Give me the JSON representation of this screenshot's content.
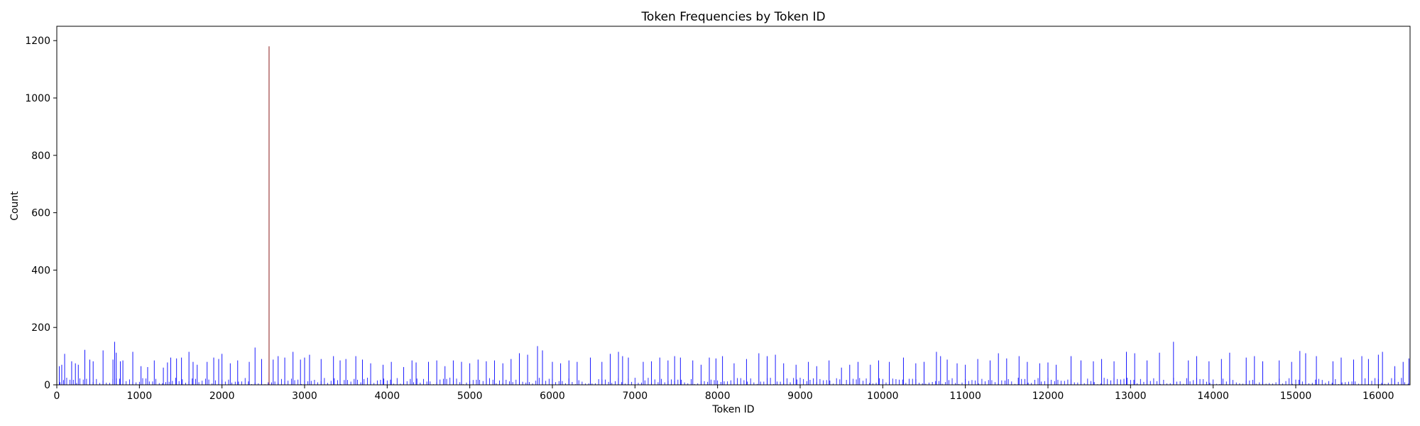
{
  "chart_data": {
    "type": "bar",
    "title": "Token Frequencies by Token ID",
    "xlabel": "Token ID",
    "ylabel": "Count",
    "xlim": [
      0,
      16384
    ],
    "ylim": [
      0,
      1250
    ],
    "xticks": [
      0,
      1000,
      2000,
      3000,
      4000,
      5000,
      6000,
      7000,
      8000,
      9000,
      10000,
      11000,
      12000,
      13000,
      14000,
      15000,
      16000
    ],
    "yticks": [
      0,
      200,
      400,
      600,
      800,
      1000,
      1200
    ],
    "grid": false,
    "bar_color": "#0000ff",
    "highlight_color": "#8b1a1a",
    "baseline_pattern": {
      "description_note_omitted": true,
      "typical_range": [
        2,
        25
      ],
      "bin_step": 40
    },
    "bars": [
      {
        "x": 30,
        "y": 65
      },
      {
        "x": 60,
        "y": 70
      },
      {
        "x": 95,
        "y": 108
      },
      {
        "x": 180,
        "y": 82
      },
      {
        "x": 225,
        "y": 75
      },
      {
        "x": 260,
        "y": 70
      },
      {
        "x": 340,
        "y": 122
      },
      {
        "x": 400,
        "y": 88
      },
      {
        "x": 440,
        "y": 82
      },
      {
        "x": 560,
        "y": 120
      },
      {
        "x": 680,
        "y": 88
      },
      {
        "x": 700,
        "y": 150
      },
      {
        "x": 720,
        "y": 112
      },
      {
        "x": 770,
        "y": 82
      },
      {
        "x": 800,
        "y": 85
      },
      {
        "x": 920,
        "y": 115
      },
      {
        "x": 1020,
        "y": 65
      },
      {
        "x": 1100,
        "y": 62
      },
      {
        "x": 1180,
        "y": 85
      },
      {
        "x": 1290,
        "y": 60
      },
      {
        "x": 1340,
        "y": 78
      },
      {
        "x": 1380,
        "y": 95
      },
      {
        "x": 1450,
        "y": 92
      },
      {
        "x": 1510,
        "y": 95
      },
      {
        "x": 1600,
        "y": 115
      },
      {
        "x": 1650,
        "y": 80
      },
      {
        "x": 1700,
        "y": 70
      },
      {
        "x": 1820,
        "y": 80
      },
      {
        "x": 1900,
        "y": 95
      },
      {
        "x": 1960,
        "y": 90
      },
      {
        "x": 2000,
        "y": 108
      },
      {
        "x": 2100,
        "y": 75
      },
      {
        "x": 2190,
        "y": 85
      },
      {
        "x": 2330,
        "y": 80
      },
      {
        "x": 2400,
        "y": 130
      },
      {
        "x": 2480,
        "y": 90
      },
      {
        "x": 2570,
        "y": 1180
      },
      {
        "x": 2620,
        "y": 88
      },
      {
        "x": 2680,
        "y": 100
      },
      {
        "x": 2760,
        "y": 95
      },
      {
        "x": 2860,
        "y": 115
      },
      {
        "x": 2950,
        "y": 88
      },
      {
        "x": 3000,
        "y": 95
      },
      {
        "x": 3060,
        "y": 105
      },
      {
        "x": 3200,
        "y": 90
      },
      {
        "x": 3350,
        "y": 100
      },
      {
        "x": 3430,
        "y": 85
      },
      {
        "x": 3500,
        "y": 90
      },
      {
        "x": 3620,
        "y": 100
      },
      {
        "x": 3700,
        "y": 88
      },
      {
        "x": 3800,
        "y": 75
      },
      {
        "x": 3950,
        "y": 70
      },
      {
        "x": 4050,
        "y": 80
      },
      {
        "x": 4200,
        "y": 62
      },
      {
        "x": 4300,
        "y": 85
      },
      {
        "x": 4350,
        "y": 78
      },
      {
        "x": 4500,
        "y": 80
      },
      {
        "x": 4600,
        "y": 85
      },
      {
        "x": 4700,
        "y": 65
      },
      {
        "x": 4800,
        "y": 85
      },
      {
        "x": 4900,
        "y": 80
      },
      {
        "x": 5000,
        "y": 75
      },
      {
        "x": 5100,
        "y": 88
      },
      {
        "x": 5200,
        "y": 82
      },
      {
        "x": 5300,
        "y": 85
      },
      {
        "x": 5400,
        "y": 75
      },
      {
        "x": 5500,
        "y": 90
      },
      {
        "x": 5600,
        "y": 110
      },
      {
        "x": 5700,
        "y": 105
      },
      {
        "x": 5820,
        "y": 135
      },
      {
        "x": 5880,
        "y": 120
      },
      {
        "x": 6000,
        "y": 80
      },
      {
        "x": 6100,
        "y": 75
      },
      {
        "x": 6200,
        "y": 85
      },
      {
        "x": 6300,
        "y": 80
      },
      {
        "x": 6460,
        "y": 95
      },
      {
        "x": 6600,
        "y": 80
      },
      {
        "x": 6700,
        "y": 108
      },
      {
        "x": 6800,
        "y": 115
      },
      {
        "x": 6850,
        "y": 100
      },
      {
        "x": 6920,
        "y": 95
      },
      {
        "x": 7100,
        "y": 80
      },
      {
        "x": 7200,
        "y": 82
      },
      {
        "x": 7300,
        "y": 95
      },
      {
        "x": 7400,
        "y": 85
      },
      {
        "x": 7480,
        "y": 100
      },
      {
        "x": 7550,
        "y": 95
      },
      {
        "x": 7700,
        "y": 85
      },
      {
        "x": 7800,
        "y": 70
      },
      {
        "x": 7900,
        "y": 95
      },
      {
        "x": 7980,
        "y": 92
      },
      {
        "x": 8060,
        "y": 100
      },
      {
        "x": 8200,
        "y": 75
      },
      {
        "x": 8350,
        "y": 90
      },
      {
        "x": 8500,
        "y": 110
      },
      {
        "x": 8600,
        "y": 100
      },
      {
        "x": 8700,
        "y": 105
      },
      {
        "x": 8800,
        "y": 75
      },
      {
        "x": 8950,
        "y": 70
      },
      {
        "x": 9100,
        "y": 80
      },
      {
        "x": 9200,
        "y": 65
      },
      {
        "x": 9350,
        "y": 85
      },
      {
        "x": 9500,
        "y": 60
      },
      {
        "x": 9600,
        "y": 70
      },
      {
        "x": 9700,
        "y": 80
      },
      {
        "x": 9850,
        "y": 70
      },
      {
        "x": 9950,
        "y": 85
      },
      {
        "x": 10080,
        "y": 80
      },
      {
        "x": 10250,
        "y": 95
      },
      {
        "x": 10400,
        "y": 75
      },
      {
        "x": 10500,
        "y": 80
      },
      {
        "x": 10650,
        "y": 115
      },
      {
        "x": 10700,
        "y": 100
      },
      {
        "x": 10780,
        "y": 88
      },
      {
        "x": 10900,
        "y": 75
      },
      {
        "x": 11000,
        "y": 70
      },
      {
        "x": 11150,
        "y": 90
      },
      {
        "x": 11300,
        "y": 85
      },
      {
        "x": 11400,
        "y": 110
      },
      {
        "x": 11500,
        "y": 92
      },
      {
        "x": 11650,
        "y": 100
      },
      {
        "x": 11750,
        "y": 80
      },
      {
        "x": 11900,
        "y": 75
      },
      {
        "x": 12000,
        "y": 78
      },
      {
        "x": 12100,
        "y": 70
      },
      {
        "x": 12280,
        "y": 100
      },
      {
        "x": 12400,
        "y": 85
      },
      {
        "x": 12550,
        "y": 82
      },
      {
        "x": 12650,
        "y": 90
      },
      {
        "x": 12800,
        "y": 82
      },
      {
        "x": 12950,
        "y": 115
      },
      {
        "x": 13050,
        "y": 110
      },
      {
        "x": 13200,
        "y": 85
      },
      {
        "x": 13350,
        "y": 112
      },
      {
        "x": 13520,
        "y": 150
      },
      {
        "x": 13700,
        "y": 85
      },
      {
        "x": 13800,
        "y": 100
      },
      {
        "x": 13950,
        "y": 82
      },
      {
        "x": 14100,
        "y": 90
      },
      {
        "x": 14200,
        "y": 112
      },
      {
        "x": 14400,
        "y": 95
      },
      {
        "x": 14500,
        "y": 100
      },
      {
        "x": 14600,
        "y": 82
      },
      {
        "x": 14800,
        "y": 85
      },
      {
        "x": 14950,
        "y": 80
      },
      {
        "x": 15050,
        "y": 118
      },
      {
        "x": 15120,
        "y": 110
      },
      {
        "x": 15250,
        "y": 100
      },
      {
        "x": 15450,
        "y": 82
      },
      {
        "x": 15550,
        "y": 95
      },
      {
        "x": 15700,
        "y": 88
      },
      {
        "x": 15800,
        "y": 100
      },
      {
        "x": 15880,
        "y": 90
      },
      {
        "x": 16000,
        "y": 105
      },
      {
        "x": 16050,
        "y": 115
      },
      {
        "x": 16200,
        "y": 65
      },
      {
        "x": 16300,
        "y": 80
      },
      {
        "x": 16370,
        "y": 92
      }
    ]
  }
}
